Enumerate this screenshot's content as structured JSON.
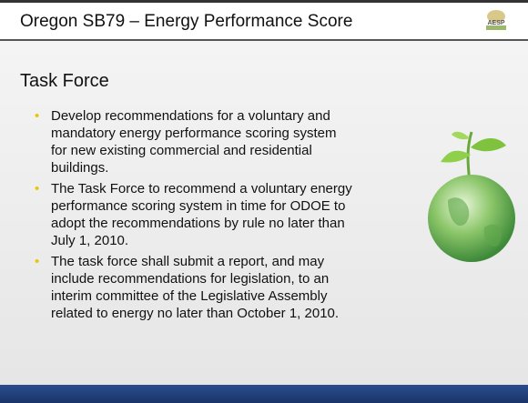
{
  "header": {
    "title": "Oregon SB79 – Energy Performance Score",
    "logo_text": "AESP"
  },
  "subtitle": "Task Force",
  "bullets": [
    {
      "lines": [
        "Develop recommendations for a voluntary and",
        "mandatory energy performance scoring system",
        "for new existing commercial and residential",
        "buildings."
      ]
    },
    {
      "lines": [
        "The Task Force  to recommend a voluntary energy",
        "performance scoring system in time for ODOE to",
        "adopt the  recommendations by rule no later than",
        "July 1, 2010."
      ]
    },
    {
      "lines": [
        "The task force shall submit a report, and may",
        "include recommendations for legislation, to an",
        "interim committee of the Legislative Assembly",
        "related to energy no later than October 1, 2010."
      ]
    }
  ]
}
